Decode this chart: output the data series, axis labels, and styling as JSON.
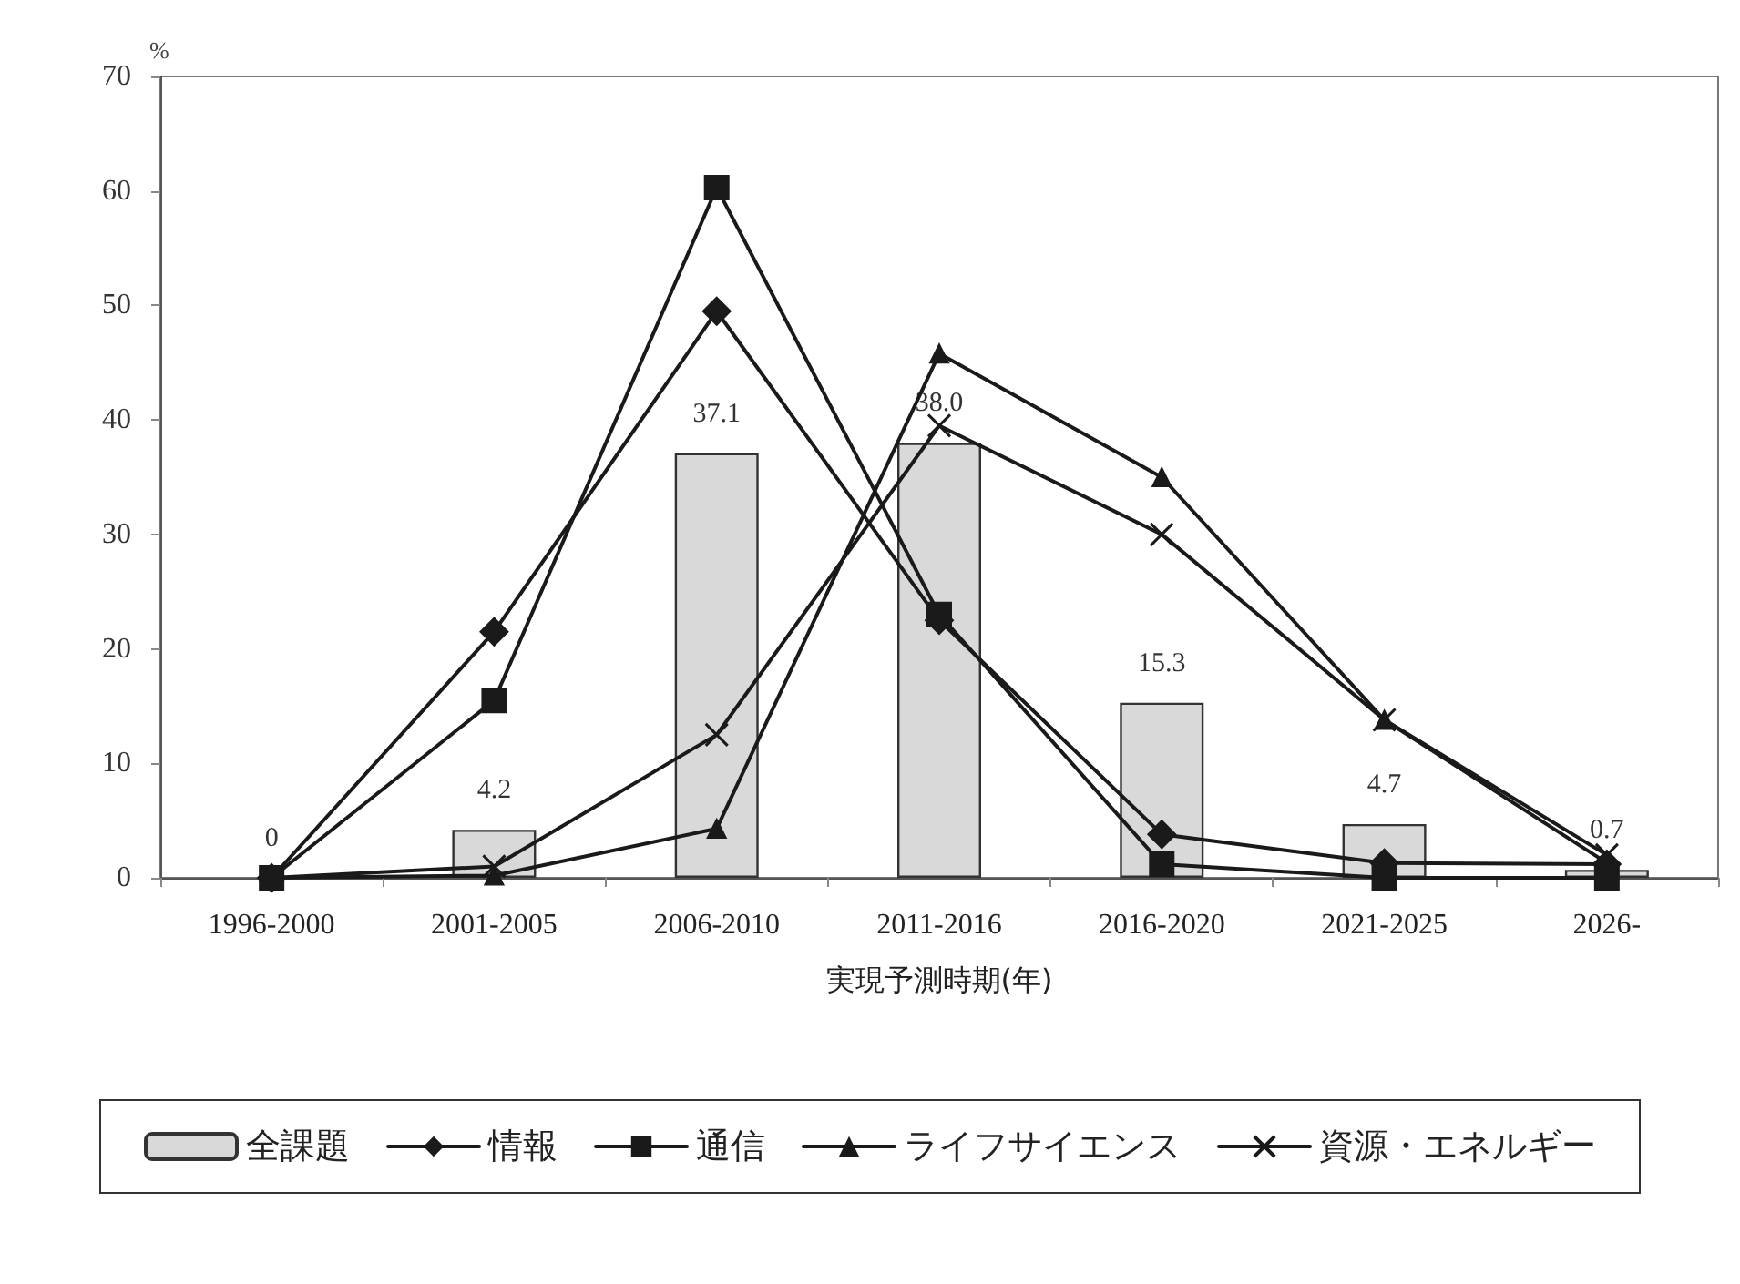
{
  "chart_data": {
    "type": "bar",
    "xlabel": "実現予測時期(年)",
    "ylabel": "%",
    "categories": [
      "1996-2000",
      "2001-2005",
      "2006-2010",
      "2011-2016",
      "2016-2020",
      "2021-2025",
      "2026-"
    ],
    "series": [
      {
        "name": "全課題",
        "color": "#d9d9d9",
        "values": [
          0,
          4.2,
          37.1,
          38.0,
          15.3,
          4.7,
          0.7
        ],
        "value_labels": [
          "0",
          "4.2",
          "37.1",
          "38.0",
          "15.3",
          "4.7",
          "0.7"
        ]
      },
      {
        "name": "情報",
        "type": "line",
        "color": "#1a1a1a",
        "marker": "diamond",
        "values": [
          0,
          21.5,
          49.5,
          22.5,
          3.8,
          1.3,
          1.2
        ]
      },
      {
        "name": "通信",
        "type": "line",
        "color": "#1a1a1a",
        "marker": "square",
        "values": [
          0,
          15.5,
          60.3,
          23,
          1.2,
          0,
          0
        ]
      },
      {
        "name": "ライフサイエンス",
        "type": "line",
        "color": "#1a1a1a",
        "marker": "triangle",
        "values": [
          0,
          0.2,
          4.3,
          45.8,
          35,
          13.8,
          1.3
        ]
      },
      {
        "name": "資源・エネルギー",
        "type": "line",
        "color": "#1a1a1a",
        "marker": "cross",
        "values": [
          0,
          1,
          12.5,
          39.5,
          30,
          13.8,
          2
        ]
      }
    ],
    "ylim": [
      0,
      70
    ],
    "yticks": [
      0,
      10,
      20,
      30,
      40,
      50,
      60,
      70
    ],
    "grid": false,
    "legend": "bottom",
    "line_style": "solid"
  }
}
